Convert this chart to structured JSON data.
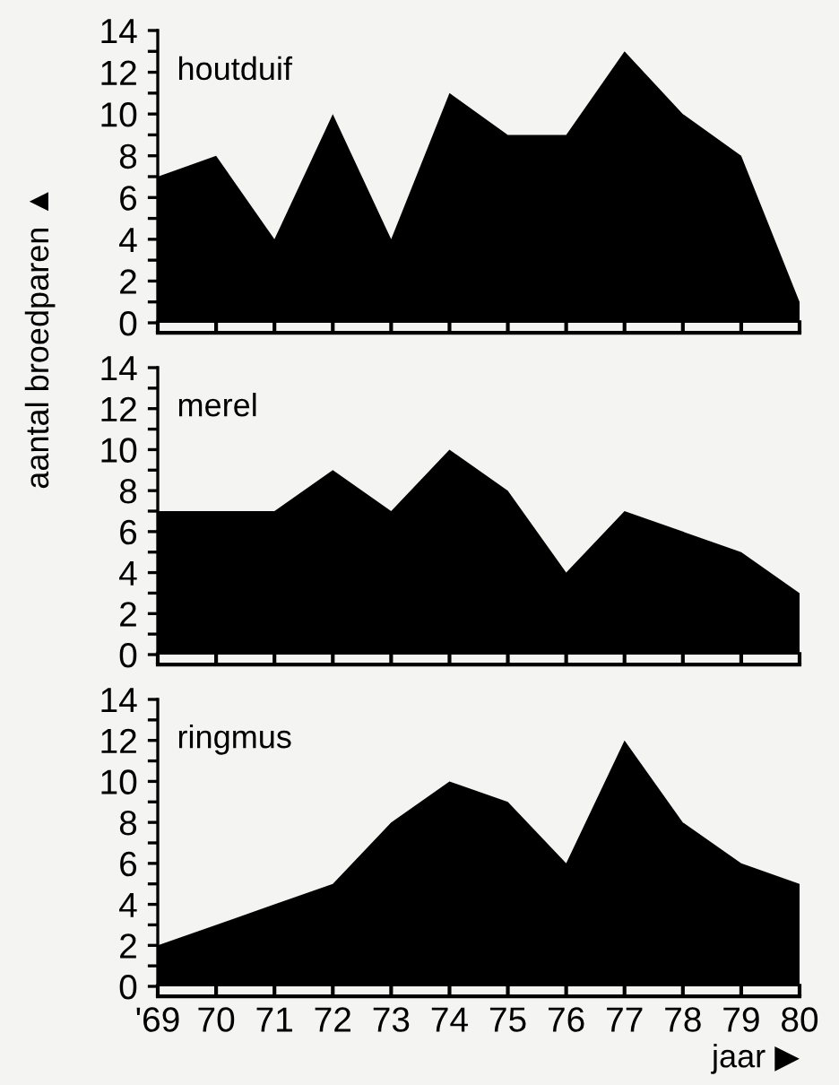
{
  "chart_data": [
    {
      "type": "area",
      "categories": [
        null,
        null,
        null,
        null,
        null,
        null,
        null,
        null,
        null,
        null,
        null,
        null
      ],
      "series": [
        {
          "name": "houtduif",
          "color": "#000000",
          "values": [
            7,
            8,
            4,
            10,
            4,
            11,
            9,
            9,
            13,
            10,
            8,
            1
          ]
        }
      ],
      "ylabel": "aantal broedparen ▲",
      "ylim": [
        0,
        14
      ],
      "yticks": [
        0,
        {
          "value": 1,
          "label": null
        },
        2,
        {
          "value": 3,
          "label": null
        },
        4,
        {
          "value": 5,
          "label": null
        },
        6,
        {
          "value": 7,
          "label": null
        },
        8,
        {
          "value": 9,
          "label": null
        },
        10,
        {
          "value": 11,
          "label": null
        },
        12,
        {
          "value": 13,
          "label": null
        },
        14
      ],
      "tick_labels": "y",
      "grid": false,
      "legend": false
    },
    {
      "type": "area",
      "categories": [
        null,
        null,
        null,
        null,
        null,
        null,
        null,
        null,
        null,
        null,
        null,
        null
      ],
      "series": [
        {
          "name": "merel",
          "color": "#000000",
          "values": [
            7,
            7,
            7,
            9,
            7,
            10,
            8,
            4,
            7,
            6,
            5,
            3
          ]
        }
      ],
      "ylim": [
        0,
        14
      ],
      "yticks": [
        0,
        {
          "value": 1,
          "label": null
        },
        2,
        {
          "value": 3,
          "label": null
        },
        4,
        {
          "value": 5,
          "label": null
        },
        6,
        {
          "value": 7,
          "label": null
        },
        8,
        {
          "value": 9,
          "label": null
        },
        10,
        {
          "value": 11,
          "label": null
        },
        12,
        {
          "value": 13,
          "label": null
        },
        14
      ],
      "tick_labels": "y",
      "grid": false,
      "legend": false
    },
    {
      "type": "area",
      "categories": [
        "'69",
        "70",
        "71",
        "72",
        "73",
        "74",
        "75",
        "76",
        "77",
        "78",
        "79",
        "80"
      ],
      "series": [
        {
          "name": "ringmus",
          "color": "#000000",
          "values": [
            2,
            3,
            4,
            5,
            8,
            10,
            9,
            6,
            12,
            8,
            6,
            5
          ]
        }
      ],
      "xlabel": "jaar ▶",
      "ylim": [
        0,
        14
      ],
      "yticks": [
        0,
        {
          "value": 1,
          "label": null
        },
        2,
        {
          "value": 3,
          "label": null
        },
        4,
        {
          "value": 5,
          "label": null
        },
        6,
        {
          "value": 7,
          "label": null
        },
        8,
        {
          "value": 9,
          "label": null
        },
        10,
        {
          "value": 11,
          "label": null
        },
        12,
        {
          "value": 13,
          "label": null
        },
        14
      ],
      "grid": false,
      "legend": false
    }
  ]
}
